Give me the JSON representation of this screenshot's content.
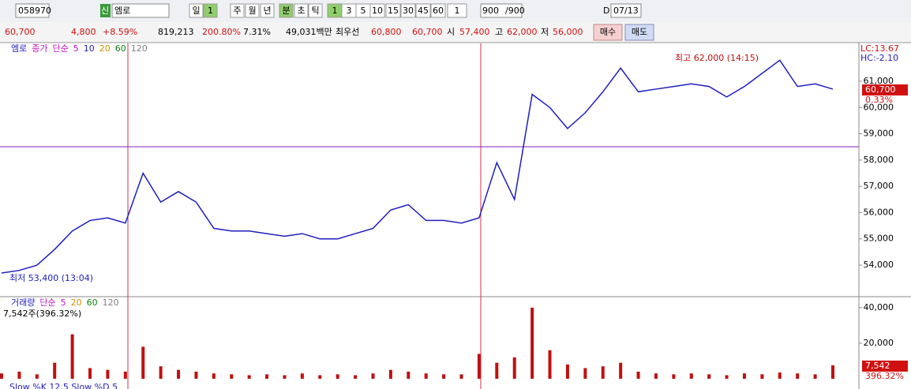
{
  "toolbar": {
    "code": "058970",
    "badge": "신",
    "name": "엠로",
    "period_buttons": [
      "일",
      "1",
      "주",
      "월",
      "년",
      "분",
      "초",
      "틱"
    ],
    "minute_buttons": [
      "1",
      "3",
      "5",
      "10",
      "15",
      "30",
      "45",
      "60"
    ],
    "count": "1",
    "range": "900",
    "range_max": "/900",
    "date_flag": "D",
    "date": "07/13"
  },
  "quote": {
    "price": "60,700",
    "change": "4,800",
    "rate": "+8.59%",
    "volume": "819,213",
    "vol_ratio": "200.80%",
    "turnover": "7.31%",
    "amount": "49,031백만",
    "best_label": "최우선",
    "ask": "60,800",
    "bid": "60,700",
    "open_label": "시",
    "open": "57,400",
    "high_label": "고",
    "high": "62,000",
    "low_label": "저",
    "low": "56,000",
    "buy": "매수",
    "sell": "매도"
  },
  "chart_data": [
    {
      "type": "line",
      "legend": [
        "엠로",
        "종가",
        "단순",
        "5",
        "10",
        "20",
        "60",
        "120"
      ],
      "series": [
        {
          "name": "엠로",
          "color": "#1f1fc0",
          "values": [
            53700,
            53800,
            54000,
            54600,
            55300,
            55700,
            55800,
            55600,
            57500,
            56400,
            56800,
            56400,
            55400,
            55300,
            55300,
            55200,
            55100,
            55200,
            55000,
            55000,
            55200,
            55400,
            56100,
            56300,
            55700,
            55700,
            55600,
            55800,
            57900,
            56500,
            60500,
            60000,
            59200,
            59800,
            60600,
            61500,
            60600,
            60700,
            60800,
            60900,
            60800,
            60400,
            60800,
            61300,
            61800,
            60800,
            60900,
            60700
          ]
        }
      ],
      "ylim": [
        52830,
        62380
      ],
      "yticks": [
        {
          "value": 54000,
          "label": "54,000"
        },
        {
          "value": 55000,
          "label": "55,000"
        },
        {
          "value": 56000,
          "label": "56,000"
        },
        {
          "value": 57000,
          "label": "57,000"
        },
        {
          "value": 58000,
          "label": "58,000"
        },
        {
          "value": 59000,
          "label": "59,000"
        },
        {
          "value": 60000,
          "label": "60,000"
        },
        {
          "value": 61000,
          "label": "61,000"
        }
      ],
      "annotations": {
        "high": "최고 62,000 (14:15)",
        "low": "최저 53,400 (13:04)",
        "lc": "LC:13.67",
        "hc": "HC:-2.10",
        "last": "60,700",
        "last_rate": "0.33%"
      }
    },
    {
      "type": "bar",
      "legend": [
        "거래량",
        "단순",
        "5",
        "20",
        "60",
        "120"
      ],
      "subtitle": "7,542주(396.32%)",
      "color": "#c01010",
      "values": [
        3000,
        4000,
        2500,
        9000,
        25000,
        6000,
        5000,
        4000,
        18000,
        7000,
        5000,
        4000,
        3000,
        2500,
        2000,
        2500,
        2000,
        3000,
        2000,
        2500,
        2000,
        3000,
        5000,
        4000,
        3000,
        2500,
        2500,
        14000,
        9000,
        12000,
        40000,
        16000,
        8000,
        6000,
        7000,
        9000,
        4000,
        3000,
        2500,
        3000,
        2500,
        2000,
        3000,
        2500,
        3500,
        3000,
        2500,
        7542
      ],
      "ylim": [
        0,
        44400
      ],
      "yticks": [
        {
          "value": 20000,
          "label": "20,000"
        },
        {
          "value": 40000,
          "label": "40,000"
        }
      ],
      "annotations": {
        "last": "7,542",
        "last_rate": "396.32%",
        "next": "Slow %K 12,5  Slow %D 5"
      }
    }
  ]
}
